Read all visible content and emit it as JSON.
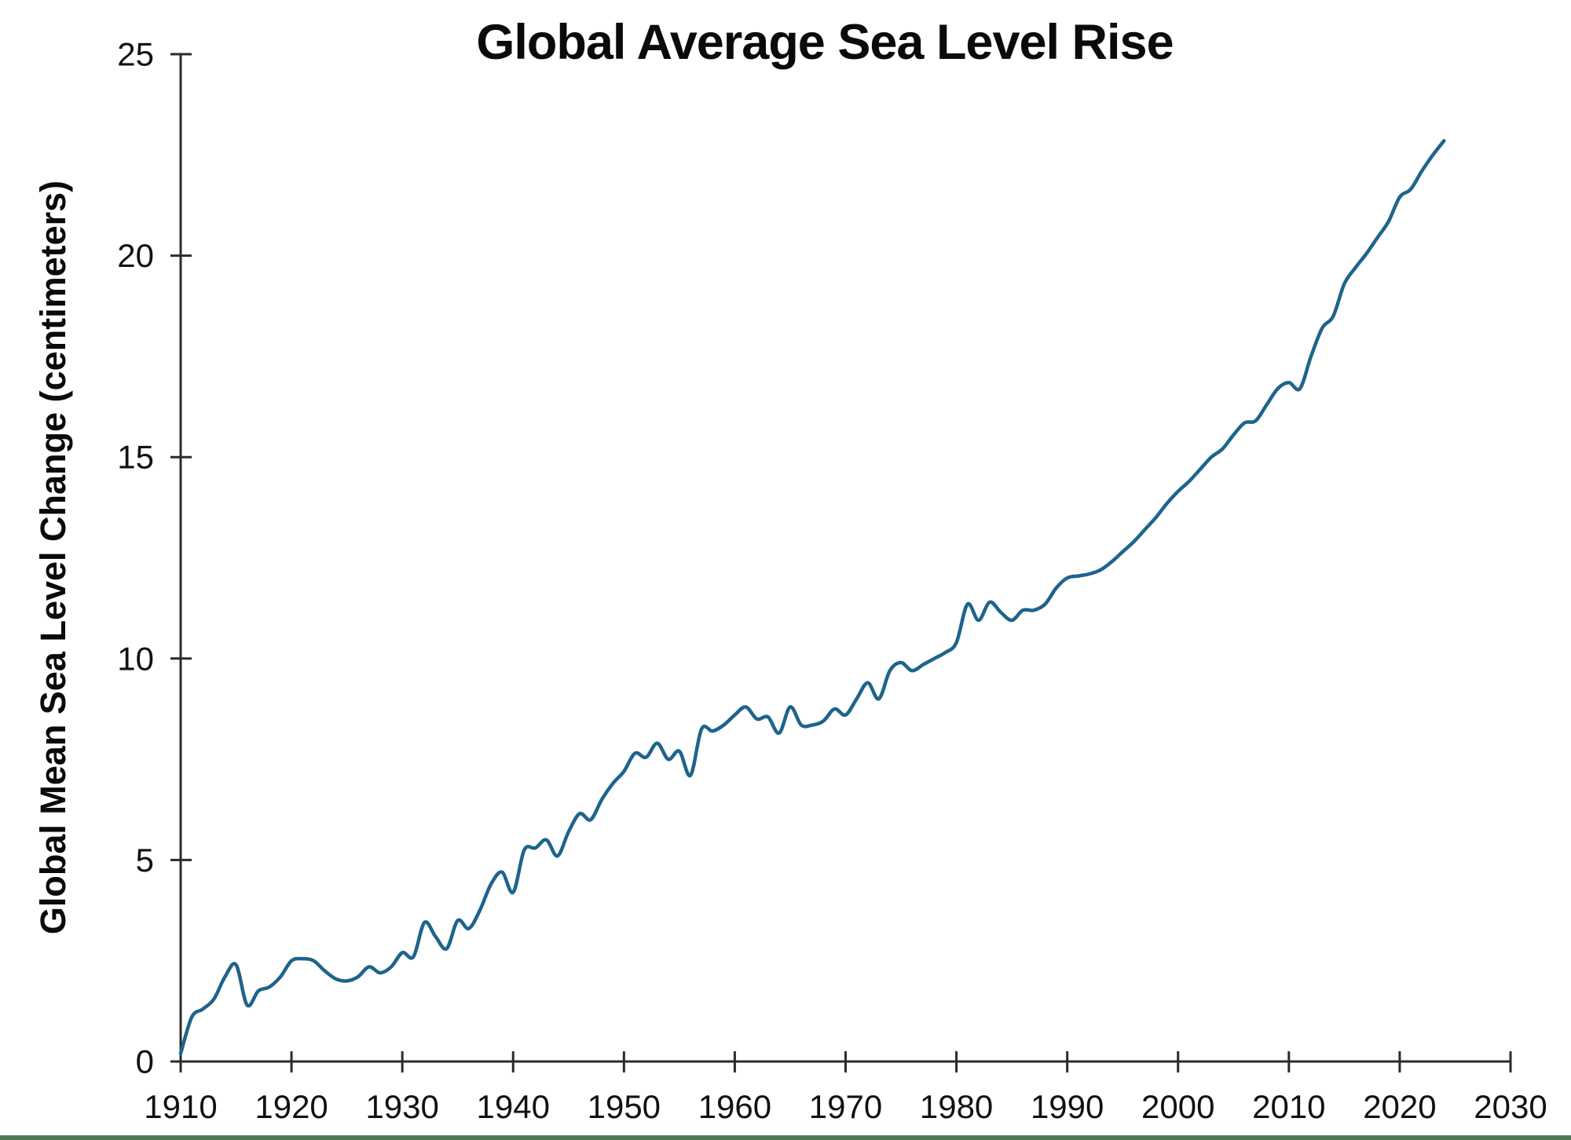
{
  "page": {
    "background": "#ffffff",
    "footer_bar_color": "#4f7a58"
  },
  "chart": {
    "title": "Global Average Sea Level Rise",
    "ylabel": "Global Mean Sea Level Change (centimeters)",
    "line_color": "#1e648c",
    "axis_color": "#2b2b2b",
    "text_color": "#0a0a0a"
  },
  "chart_data": {
    "type": "line",
    "title": "Global Average Sea Level Rise",
    "xlabel": "",
    "ylabel": "Global Mean Sea Level Change (centimeters)",
    "xlim": [
      1910,
      2030
    ],
    "ylim": [
      0,
      25
    ],
    "x_ticks": [
      1910,
      1920,
      1930,
      1940,
      1950,
      1960,
      1970,
      1980,
      1990,
      2000,
      2010,
      2020,
      2030
    ],
    "y_ticks": [
      0,
      5,
      10,
      15,
      20,
      25
    ],
    "grid": false,
    "legend": "none",
    "series": [
      {
        "name": "Global mean sea level change",
        "color": "#1e648c",
        "x": [
          1910,
          1911,
          1912,
          1913,
          1914,
          1915,
          1916,
          1917,
          1918,
          1919,
          1920,
          1921,
          1922,
          1923,
          1924,
          1925,
          1926,
          1927,
          1928,
          1929,
          1930,
          1931,
          1932,
          1933,
          1934,
          1935,
          1936,
          1937,
          1938,
          1939,
          1940,
          1941,
          1942,
          1943,
          1944,
          1945,
          1946,
          1947,
          1948,
          1949,
          1950,
          1951,
          1952,
          1953,
          1954,
          1955,
          1956,
          1957,
          1958,
          1959,
          1960,
          1961,
          1962,
          1963,
          1964,
          1965,
          1966,
          1967,
          1968,
          1969,
          1970,
          1971,
          1972,
          1973,
          1974,
          1975,
          1976,
          1977,
          1978,
          1979,
          1980,
          1981,
          1982,
          1983,
          1984,
          1985,
          1986,
          1987,
          1988,
          1989,
          1990,
          1991,
          1992,
          1993,
          1994,
          1995,
          1996,
          1997,
          1998,
          1999,
          2000,
          2001,
          2002,
          2003,
          2004,
          2005,
          2006,
          2007,
          2008,
          2009,
          2010,
          2011,
          2012,
          2013,
          2014,
          2015,
          2016,
          2017,
          2018,
          2019,
          2020,
          2021,
          2022,
          2023,
          2024
        ],
        "y": [
          0.2,
          1.1,
          1.3,
          1.55,
          2.1,
          2.4,
          1.4,
          1.75,
          1.85,
          2.1,
          2.5,
          2.55,
          2.5,
          2.25,
          2.05,
          2.0,
          2.1,
          2.35,
          2.2,
          2.35,
          2.7,
          2.6,
          3.45,
          3.1,
          2.8,
          3.5,
          3.3,
          3.75,
          4.4,
          4.7,
          4.2,
          5.25,
          5.3,
          5.5,
          5.1,
          5.7,
          6.15,
          6.0,
          6.5,
          6.9,
          7.2,
          7.65,
          7.55,
          7.9,
          7.5,
          7.7,
          7.1,
          8.25,
          8.2,
          8.35,
          8.6,
          8.8,
          8.5,
          8.55,
          8.15,
          8.8,
          8.35,
          8.35,
          8.45,
          8.75,
          8.6,
          9.0,
          9.4,
          9.0,
          9.7,
          9.9,
          9.7,
          9.85,
          10.0,
          10.15,
          10.4,
          11.35,
          10.95,
          11.4,
          11.15,
          10.95,
          11.2,
          11.2,
          11.35,
          11.75,
          12.0,
          12.05,
          12.1,
          12.2,
          12.4,
          12.65,
          12.9,
          13.2,
          13.5,
          13.85,
          14.15,
          14.4,
          14.7,
          15.0,
          15.2,
          15.55,
          15.85,
          15.9,
          16.3,
          16.7,
          16.85,
          16.7,
          17.5,
          18.2,
          18.5,
          19.3,
          19.7,
          20.05,
          20.45,
          20.85,
          21.45,
          21.65,
          22.1,
          22.5,
          22.85
        ]
      }
    ]
  }
}
